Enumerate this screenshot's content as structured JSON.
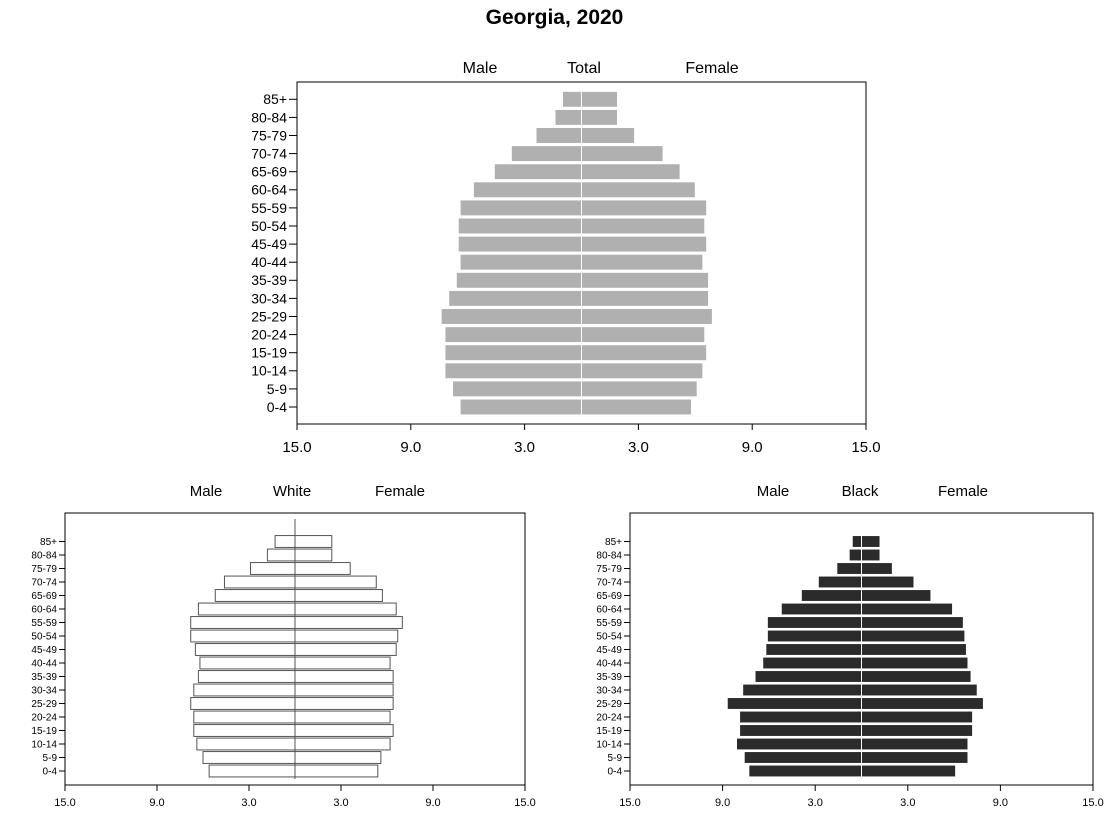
{
  "page": {
    "title": "Georgia, 2020"
  },
  "chart_data": [
    {
      "type": "bar",
      "orientation": "horizontal-pyramid",
      "title": "Total",
      "left_label": "Male",
      "right_label": "Female",
      "categories": [
        "0-4",
        "5-9",
        "10-14",
        "15-19",
        "20-24",
        "25-29",
        "30-34",
        "35-39",
        "40-44",
        "45-49",
        "50-54",
        "55-59",
        "60-64",
        "65-69",
        "70-74",
        "75-79",
        "80-84",
        "85+"
      ],
      "series": [
        {
          "name": "Male",
          "values": [
            6.4,
            6.8,
            7.2,
            7.2,
            7.2,
            7.4,
            7.0,
            6.6,
            6.4,
            6.5,
            6.5,
            6.4,
            5.7,
            4.6,
            3.7,
            2.4,
            1.4,
            1.0
          ]
        },
        {
          "name": "Female",
          "values": [
            5.8,
            6.1,
            6.4,
            6.6,
            6.5,
            6.9,
            6.7,
            6.7,
            6.4,
            6.6,
            6.5,
            6.6,
            6.0,
            5.2,
            4.3,
            2.8,
            1.9,
            1.9
          ]
        }
      ],
      "x_ticks": [
        "15.0",
        "9.0",
        "3.0",
        "3.0",
        "9.0",
        "15.0"
      ],
      "xlim": [
        -15,
        15
      ],
      "colors": {
        "bar": "#b0b0b0",
        "stroke": "#ffffff"
      }
    },
    {
      "type": "bar",
      "orientation": "horizontal-pyramid",
      "title": "White",
      "left_label": "Male",
      "right_label": "Female",
      "categories": [
        "0-4",
        "5-9",
        "10-14",
        "15-19",
        "20-24",
        "25-29",
        "30-34",
        "35-39",
        "40-44",
        "45-49",
        "50-54",
        "55-59",
        "60-64",
        "65-69",
        "70-74",
        "75-79",
        "80-84",
        "85+"
      ],
      "series": [
        {
          "name": "Male",
          "values": [
            5.6,
            6.0,
            6.4,
            6.6,
            6.6,
            6.8,
            6.6,
            6.3,
            6.2,
            6.5,
            6.8,
            6.8,
            6.3,
            5.2,
            4.6,
            2.9,
            1.8,
            1.3
          ]
        },
        {
          "name": "Female",
          "values": [
            5.4,
            5.6,
            6.2,
            6.4,
            6.2,
            6.4,
            6.4,
            6.4,
            6.2,
            6.6,
            6.7,
            7.0,
            6.6,
            5.7,
            5.3,
            3.6,
            2.4,
            2.4
          ]
        }
      ],
      "x_ticks": [
        "15.0",
        "9.0",
        "3.0",
        "3.0",
        "9.0",
        "15.0"
      ],
      "xlim": [
        -15,
        15
      ],
      "colors": {
        "bar": "#ffffff",
        "stroke": "#555555"
      }
    },
    {
      "type": "bar",
      "orientation": "horizontal-pyramid",
      "title": "Black",
      "left_label": "Male",
      "right_label": "Female",
      "categories": [
        "0-4",
        "5-9",
        "10-14",
        "15-19",
        "20-24",
        "25-29",
        "30-34",
        "35-39",
        "40-44",
        "45-49",
        "50-54",
        "55-59",
        "60-64",
        "65-69",
        "70-74",
        "75-79",
        "80-84",
        "85+"
      ],
      "series": [
        {
          "name": "Male",
          "values": [
            7.3,
            7.6,
            8.1,
            7.9,
            7.9,
            8.7,
            7.7,
            6.9,
            6.4,
            6.2,
            6.1,
            6.1,
            5.2,
            3.9,
            2.8,
            1.6,
            0.8,
            0.6
          ]
        },
        {
          "name": "Female",
          "values": [
            6.1,
            6.9,
            6.9,
            7.2,
            7.2,
            7.9,
            7.5,
            7.1,
            6.9,
            6.8,
            6.7,
            6.6,
            5.9,
            4.5,
            3.4,
            2.0,
            1.2,
            1.2
          ]
        }
      ],
      "x_ticks": [
        "15.0",
        "9.0",
        "3.0",
        "3.0",
        "9.0",
        "15.0"
      ],
      "xlim": [
        -15,
        15
      ],
      "colors": {
        "bar": "#2b2b2b",
        "stroke": "#ffffff"
      }
    }
  ]
}
